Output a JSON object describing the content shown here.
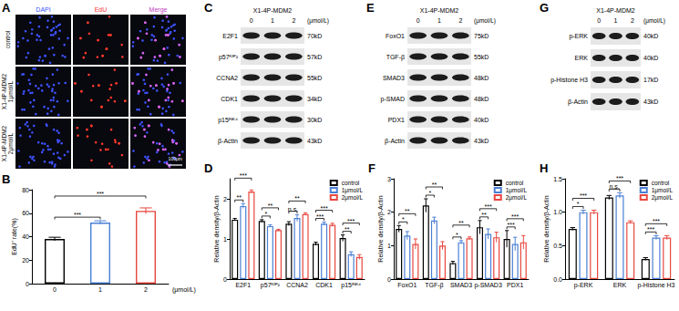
{
  "panels": {
    "A": {
      "title": "A",
      "columns": [
        "DAPI",
        "EdU",
        "Merge"
      ],
      "rows": [
        "control",
        "X1-4P-MDM2\n1μmol/L",
        "X1-4P-MDM2\n2μmol/L"
      ],
      "scale_bar": "100μm"
    },
    "C": {
      "title": "C",
      "treatment": "X1-4P-MDM2",
      "lanes": [
        "0",
        "1",
        "2"
      ],
      "unit": "(μmol/L)",
      "rows": [
        {
          "label": "E2F1",
          "size": "70kD"
        },
        {
          "label": "p57ᴷᴵᴾ²",
          "size": "57kD"
        },
        {
          "label": "CCNA2",
          "size": "55kD"
        },
        {
          "label": "CDK1",
          "size": "34kD"
        },
        {
          "label": "p15ᴵᴺᴷ⁴",
          "size": "30kD"
        },
        {
          "label": "β-Actin",
          "size": "43kD"
        }
      ]
    },
    "E": {
      "title": "E",
      "treatment": "X1-4P-MDM2",
      "lanes": [
        "0",
        "1",
        "2"
      ],
      "unit": "(μmol/L)",
      "rows": [
        {
          "label": "FoxO1",
          "size": "75kD"
        },
        {
          "label": "TGF-β",
          "size": "55kD"
        },
        {
          "label": "SMAD3",
          "size": "48kD"
        },
        {
          "label": "p-SMAD",
          "size": "48kD"
        },
        {
          "label": "PDX1",
          "size": "40kD"
        },
        {
          "label": "β-Actin",
          "size": "43kD"
        }
      ]
    },
    "G": {
      "title": "G",
      "treatment": "X1-4P-MDM2",
      "lanes": [
        "0",
        "1",
        "2"
      ],
      "unit": "(μmol/L)",
      "rows": [
        {
          "label": "p-ERK",
          "size": "40kD"
        },
        {
          "label": "ERK",
          "size": "40kD"
        },
        {
          "label": "p-Histone H3",
          "size": "17kD"
        },
        {
          "label": "β-Actin",
          "size": "43kD"
        }
      ]
    }
  },
  "chart_data": [
    {
      "type": "bar",
      "title": "B",
      "categories": [
        "0",
        "1",
        "2"
      ],
      "x_label": "(μmol/L)",
      "y_label": "EdU⁺ rate(%)",
      "values": [
        38,
        52,
        62
      ],
      "errors": [
        1.5,
        1.5,
        2.5
      ],
      "colors": [
        "#000000",
        "#4a7fd4",
        "#e8473f"
      ],
      "ylim": [
        0,
        80
      ],
      "yticks": [
        0,
        20,
        40,
        60,
        80
      ],
      "grid": false,
      "significance": [
        {
          "pair": [
            "0",
            "1"
          ],
          "label": "***"
        },
        {
          "pair": [
            "0",
            "2"
          ],
          "label": "***"
        }
      ]
    },
    {
      "type": "bar",
      "title": "D",
      "y_label": "Relative density/β-Actin",
      "categories": [
        "E2F1",
        "p57ᴷᴵᴾ²",
        "CCNA2",
        "CDK1",
        "p15ᴵᴺᴷ⁴"
      ],
      "series": [
        {
          "name": "control",
          "color": "#000000",
          "values": [
            1.48,
            1.45,
            1.38,
            0.88,
            1.02
          ],
          "errors": [
            0.03,
            0.03,
            0.05,
            0.04,
            0.08
          ]
        },
        {
          "name": "1μmol/L",
          "color": "#4a7fd4",
          "values": [
            1.82,
            1.32,
            1.52,
            1.38,
            0.62
          ],
          "errors": [
            0.06,
            0.03,
            0.08,
            0.04,
            0.06
          ]
        },
        {
          "name": "2μmol/L",
          "color": "#e8473f",
          "values": [
            2.18,
            1.22,
            1.62,
            1.35,
            0.55
          ],
          "errors": [
            0.04,
            0.02,
            0.03,
            0.04,
            0.06
          ]
        }
      ],
      "ylim": [
        0,
        2.5
      ],
      "yticks": [
        0,
        1,
        2
      ],
      "grid": false,
      "legend": "top-right",
      "significance": [
        {
          "category": "E2F1",
          "pair": [
            "control",
            "1μmol/L"
          ],
          "label": "**"
        },
        {
          "category": "E2F1",
          "pair": [
            "control",
            "2μmol/L"
          ],
          "label": "***"
        },
        {
          "category": "p57ᴷᴵᴾ²",
          "pair": [
            "control",
            "1μmol/L"
          ],
          "label": "*"
        },
        {
          "category": "p57ᴷᴵᴾ²",
          "pair": [
            "control",
            "2μmol/L"
          ],
          "label": "**"
        },
        {
          "category": "CCNA2",
          "pair": [
            "control",
            "1μmol/L"
          ],
          "label": "n.s."
        },
        {
          "category": "CCNA2",
          "pair": [
            "control",
            "2μmol/L"
          ],
          "label": "**"
        },
        {
          "category": "CDK1",
          "pair": [
            "control",
            "1μmol/L"
          ],
          "label": "***"
        },
        {
          "category": "CDK1",
          "pair": [
            "control",
            "2μmol/L"
          ],
          "label": "***"
        },
        {
          "category": "p15ᴵᴺᴷ⁴",
          "pair": [
            "control",
            "1μmol/L"
          ],
          "label": "**"
        },
        {
          "category": "p15ᴵᴺᴷ⁴",
          "pair": [
            "control",
            "2μmol/L"
          ],
          "label": "***"
        }
      ]
    },
    {
      "type": "bar",
      "title": "F",
      "y_label": "Relative density/β-Actin",
      "categories": [
        "FoxO1",
        "TGF-β",
        "SMAD3",
        "p-SMAD3",
        "PDX1"
      ],
      "series": [
        {
          "name": "control",
          "color": "#000000",
          "values": [
            1.5,
            2.2,
            0.48,
            1.55,
            1.2
          ],
          "errors": [
            0.1,
            0.2,
            0.05,
            0.2,
            0.25
          ]
        },
        {
          "name": "1μmol/L",
          "color": "#4a7fd4",
          "values": [
            1.3,
            1.75,
            1.1,
            1.35,
            1.05
          ],
          "errors": [
            0.12,
            0.1,
            0.05,
            0.15,
            0.2
          ]
        },
        {
          "name": "2μmol/L",
          "color": "#e8473f",
          "values": [
            1.05,
            1.0,
            1.22,
            1.25,
            1.1
          ],
          "errors": [
            0.15,
            0.12,
            0.04,
            0.15,
            0.2
          ]
        }
      ],
      "ylim": [
        0,
        3
      ],
      "yticks": [
        0,
        1,
        2,
        3
      ],
      "grid": false,
      "legend": "top-right",
      "significance": [
        {
          "category": "FoxO1",
          "pair": [
            "control",
            "1μmol/L"
          ],
          "label": "*"
        },
        {
          "category": "FoxO1",
          "pair": [
            "control",
            "2μmol/L"
          ],
          "label": "**"
        },
        {
          "category": "TGF-β",
          "pair": [
            "control",
            "1μmol/L"
          ],
          "label": "*"
        },
        {
          "category": "TGF-β",
          "pair": [
            "control",
            "2μmol/L"
          ],
          "label": "**"
        },
        {
          "category": "SMAD3",
          "pair": [
            "control",
            "1μmol/L"
          ],
          "label": "*"
        },
        {
          "category": "SMAD3",
          "pair": [
            "control",
            "2μmol/L"
          ],
          "label": "**"
        },
        {
          "category": "p-SMAD3",
          "pair": [
            "control",
            "1μmol/L"
          ],
          "label": "**"
        },
        {
          "category": "p-SMAD3",
          "pair": [
            "control",
            "2μmol/L"
          ],
          "label": "***"
        },
        {
          "category": "PDX1",
          "pair": [
            "control",
            "1μmol/L"
          ],
          "label": "***"
        },
        {
          "category": "PDX1",
          "pair": [
            "control",
            "2μmol/L"
          ],
          "label": "***"
        }
      ]
    },
    {
      "type": "bar",
      "title": "H",
      "y_label": "Relative density/β-Actin",
      "categories": [
        "p-ERK",
        "ERK",
        "p-Histone H3"
      ],
      "series": [
        {
          "name": "control",
          "color": "#000000",
          "values": [
            0.75,
            1.22,
            0.3
          ],
          "errors": [
            0.02,
            0.03,
            0.02
          ]
        },
        {
          "name": "1μmol/L",
          "color": "#4a7fd4",
          "values": [
            1.0,
            1.25,
            0.62
          ],
          "errors": [
            0.03,
            0.04,
            0.03
          ]
        },
        {
          "name": "2μmol/L",
          "color": "#e8473f",
          "values": [
            1.0,
            0.85,
            0.62
          ],
          "errors": [
            0.03,
            0.02,
            0.03
          ]
        }
      ],
      "ylim": [
        0,
        1.5
      ],
      "yticks": [
        {
          "value": 0,
          "label": "0.0"
        },
        0.5,
        {
          "value": 1,
          "label": "1.0"
        },
        1.5
      ],
      "grid": false,
      "legend": "top-right",
      "significance": [
        {
          "category": "p-ERK",
          "pair": [
            "control",
            "1μmol/L"
          ],
          "label": "*"
        },
        {
          "category": "p-ERK",
          "pair": [
            "control",
            "2μmol/L"
          ],
          "label": "***"
        },
        {
          "category": "ERK",
          "pair": [
            "control",
            "1μmol/L"
          ],
          "label": "n.s."
        },
        {
          "category": "ERK",
          "pair": [
            "control",
            "2μmol/L"
          ],
          "label": "***"
        },
        {
          "category": "p-Histone H3",
          "pair": [
            "control",
            "1μmol/L"
          ],
          "label": "***"
        },
        {
          "category": "p-Histone H3",
          "pair": [
            "control",
            "2μmol/L"
          ],
          "label": "***"
        }
      ]
    }
  ]
}
